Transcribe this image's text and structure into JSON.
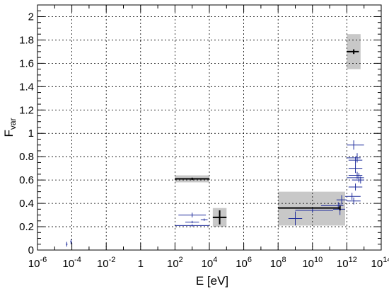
{
  "chart_data": {
    "type": "scatter",
    "xlabel": "E [eV]",
    "ylabel_main": "F",
    "ylabel_sub": "var",
    "x_scale": "log10",
    "xlim_exponent": [
      -6,
      14
    ],
    "ylim": [
      0,
      2.1
    ],
    "grid": true,
    "x_tick_exponents": [
      -6,
      -4,
      -2,
      0,
      2,
      4,
      6,
      8,
      10,
      12,
      14
    ],
    "x_tick_labels": [
      {
        "base": "10",
        "exp": "-6"
      },
      {
        "base": "10",
        "exp": "-4"
      },
      {
        "base": "10",
        "exp": "-2"
      },
      {
        "base": "1",
        "exp": ""
      },
      {
        "base": "10",
        "exp": "2"
      },
      {
        "base": "10",
        "exp": "4"
      },
      {
        "base": "10",
        "exp": "6"
      },
      {
        "base": "10",
        "exp": "8"
      },
      {
        "base": "10",
        "exp": "10"
      },
      {
        "base": "10",
        "exp": "12"
      },
      {
        "base": "10",
        "exp": "14"
      }
    ],
    "y_ticks": [
      0,
      0.2,
      0.4,
      0.6,
      0.8,
      1,
      1.2,
      1.4,
      1.6,
      1.8,
      2
    ],
    "y_tick_labels": [
      "0",
      "0.2",
      "0.4",
      "0.6",
      "0.8",
      "1",
      "1.2",
      "1.4",
      "1.6",
      "1.8",
      "2"
    ],
    "colors": {
      "black_series": "#000000",
      "blue_series": "#1f2d9c",
      "band": "#c8c8c8",
      "grid": "#000000"
    },
    "black_series": [
      {
        "x_exp": 3.0,
        "y": 0.61,
        "x_lo_exp": 2.0,
        "x_hi_exp": 4.0,
        "yerr": 0.01,
        "band": [
          2.0,
          4.0,
          0.58,
          0.64
        ]
      },
      {
        "x_exp": 4.6,
        "y": 0.28,
        "x_lo_exp": 4.2,
        "x_hi_exp": 5.0,
        "yerr": 0.06,
        "band": [
          4.2,
          5.0,
          0.2,
          0.36
        ]
      },
      {
        "x_exp": 11.6,
        "y": 0.36,
        "x_lo_exp": 8.0,
        "x_hi_exp": 11.6,
        "yerr": 0.02,
        "band": [
          8.0,
          11.9,
          0.21,
          0.5
        ]
      },
      {
        "x_exp": 12.4,
        "y": 1.7,
        "x_lo_exp": 12.0,
        "x_hi_exp": 12.7,
        "yerr": 0.02,
        "band": [
          12.0,
          12.8,
          1.55,
          1.85
        ]
      }
    ],
    "blue_series": [
      {
        "x_exp": -4.3,
        "y": 0.05,
        "x_lo_exp": -4.35,
        "x_hi_exp": -4.25,
        "yerr": 0.02
      },
      {
        "x_exp": -4.05,
        "y": 0.07,
        "x_lo_exp": -4.1,
        "x_hi_exp": -4.0,
        "yerr": 0.02
      },
      {
        "x_exp": 3.0,
        "y": 0.3,
        "x_lo_exp": 2.2,
        "x_hi_exp": 3.8,
        "yerr": 0.02
      },
      {
        "x_exp": 3.0,
        "y": 0.24,
        "x_lo_exp": 2.6,
        "x_hi_exp": 3.4,
        "yerr": 0.01
      },
      {
        "x_exp": 3.7,
        "y": 0.26,
        "x_lo_exp": 3.5,
        "x_hi_exp": 3.9,
        "yerr": 0.01
      },
      {
        "x_exp": 3.0,
        "y": 0.21,
        "x_lo_exp": 2.0,
        "x_hi_exp": 4.0,
        "yerr": 0.01
      },
      {
        "x_exp": 9.0,
        "y": 0.27,
        "x_lo_exp": 8.6,
        "x_hi_exp": 9.4,
        "yerr": 0.06
      },
      {
        "x_exp": 10.0,
        "y": 0.34,
        "x_lo_exp": 9.0,
        "x_hi_exp": 11.2,
        "yerr": 0.02
      },
      {
        "x_exp": 11.5,
        "y": 0.38,
        "x_lo_exp": 10.5,
        "x_hi_exp": 11.8,
        "yerr": 0.03
      },
      {
        "x_exp": 11.6,
        "y": 0.35,
        "x_lo_exp": 11.2,
        "x_hi_exp": 11.9,
        "yerr": 0.05
      },
      {
        "x_exp": 11.7,
        "y": 0.43,
        "x_lo_exp": 11.4,
        "x_hi_exp": 12.0,
        "yerr": 0.04
      },
      {
        "x_exp": 12.4,
        "y": 0.9,
        "x_lo_exp": 12.0,
        "x_hi_exp": 13.0,
        "yerr": 0.04
      },
      {
        "x_exp": 12.6,
        "y": 0.79,
        "x_lo_exp": 12.0,
        "x_hi_exp": 12.8,
        "yerr": 0.04
      },
      {
        "x_exp": 12.5,
        "y": 0.77,
        "x_lo_exp": 12.1,
        "x_hi_exp": 12.9,
        "yerr": 0.03
      },
      {
        "x_exp": 12.5,
        "y": 0.7,
        "x_lo_exp": 12.1,
        "x_hi_exp": 12.9,
        "yerr": 0.04
      },
      {
        "x_exp": 12.6,
        "y": 0.64,
        "x_lo_exp": 12.1,
        "x_hi_exp": 12.9,
        "yerr": 0.03
      },
      {
        "x_exp": 12.7,
        "y": 0.62,
        "x_lo_exp": 12.0,
        "x_hi_exp": 13.0,
        "yerr": 0.04
      },
      {
        "x_exp": 12.8,
        "y": 0.6,
        "x_lo_exp": 12.3,
        "x_hi_exp": 13.0,
        "yerr": 0.03
      },
      {
        "x_exp": 12.5,
        "y": 0.54,
        "x_lo_exp": 12.1,
        "x_hi_exp": 12.9,
        "yerr": 0.03
      },
      {
        "x_exp": 12.3,
        "y": 0.46,
        "x_lo_exp": 11.9,
        "x_hi_exp": 12.8,
        "yerr": 0.03
      },
      {
        "x_exp": 12.4,
        "y": 0.42,
        "x_lo_exp": 12.0,
        "x_hi_exp": 12.8,
        "yerr": 0.03
      }
    ]
  }
}
